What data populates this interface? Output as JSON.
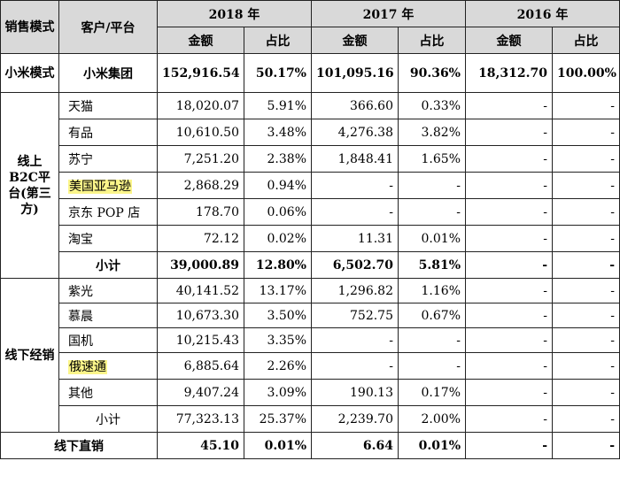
{
  "header": {
    "channel_mode": "销售模式",
    "customer_platform": "客户/平台",
    "years": [
      "2018 年",
      "2017 年",
      "2016 年"
    ],
    "amount": "金额",
    "ratio": "占比"
  },
  "rows": [
    {
      "group": "小米模式",
      "customer": "小米集团",
      "v2018": "152,916.54",
      "p2018": "50.17%",
      "v2017": "101,095.16",
      "p2017": "90.36%",
      "v2016": "18,312.70",
      "p2016": "100.00%"
    },
    {
      "group": "线上B2C平台(第三方)",
      "customer": "天猫",
      "v2018": "18,020.07",
      "p2018": "5.91%",
      "v2017": "366.60",
      "p2017": "0.33%",
      "v2016": "-",
      "p2016": "-"
    },
    {
      "customer": "有品",
      "v2018": "10,610.50",
      "p2018": "3.48%",
      "v2017": "4,276.38",
      "p2017": "3.82%",
      "v2016": "-",
      "p2016": "-"
    },
    {
      "customer": "苏宁",
      "v2018": "7,251.20",
      "p2018": "2.38%",
      "v2017": "1,848.41",
      "p2017": "1.65%",
      "v2016": "-",
      "p2016": "-"
    },
    {
      "customer": "美国亚马逊",
      "v2018": "2,868.29",
      "p2018": "0.94%",
      "v2017": "-",
      "p2017": "-",
      "v2016": "-",
      "p2016": "-"
    },
    {
      "customer": "京东 POP 店",
      "v2018": "178.70",
      "p2018": "0.06%",
      "v2017": "-",
      "p2017": "-",
      "v2016": "-",
      "p2016": "-"
    },
    {
      "customer": "淘宝",
      "v2018": "72.12",
      "p2018": "0.02%",
      "v2017": "11.31",
      "p2017": "0.01%",
      "v2016": "-",
      "p2016": "-"
    },
    {
      "customer": "小计",
      "v2018": "39,000.89",
      "p2018": "12.80%",
      "v2017": "6,502.70",
      "p2017": "5.81%",
      "v2016": "-",
      "p2016": "-"
    },
    {
      "group": "线下经销",
      "customer": "紫光",
      "v2018": "40,141.52",
      "p2018": "13.17%",
      "v2017": "1,296.82",
      "p2017": "1.16%",
      "v2016": "-",
      "p2016": "-"
    },
    {
      "customer": "慕晨",
      "v2018": "10,673.30",
      "p2018": "3.50%",
      "v2017": "752.75",
      "p2017": "0.67%",
      "v2016": "-",
      "p2016": "-"
    },
    {
      "customer": "国机",
      "v2018": "10,215.43",
      "p2018": "3.35%",
      "v2017": "-",
      "p2017": "-",
      "v2016": "-",
      "p2016": "-"
    },
    {
      "customer": "俄速通",
      "v2018": "6,885.64",
      "p2018": "2.26%",
      "v2017": "-",
      "p2017": "-",
      "v2016": "-",
      "p2016": "-"
    },
    {
      "customer": "其他",
      "v2018": "9,407.24",
      "p2018": "3.09%",
      "v2017": "190.13",
      "p2017": "0.17%",
      "v2016": "-",
      "p2016": "-"
    },
    {
      "customer": "小计",
      "v2018": "77,323.13",
      "p2018": "25.37%",
      "v2017": "2,239.70",
      "p2017": "2.00%",
      "v2016": "-",
      "p2016": "-"
    },
    {
      "group": "线下直销",
      "v2018": "45.10",
      "p2018": "0.01%",
      "v2017": "6.64",
      "p2017": "0.01%",
      "v2016": "-",
      "p2016": "-"
    }
  ],
  "highlight_color": "#fbf58a",
  "header_bg": "#d9d9d9"
}
